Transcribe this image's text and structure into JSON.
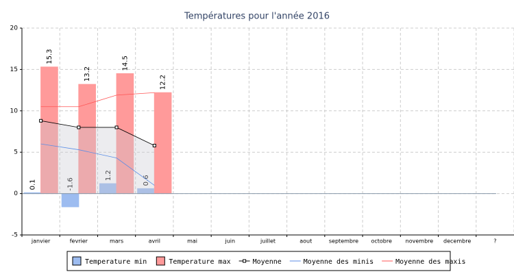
{
  "chart_data": {
    "type": "bar",
    "title": "Températures pour l'année 2016",
    "categories": [
      "janvier",
      "fevrier",
      "mars",
      "avril",
      "mai",
      "juin",
      "juillet",
      "aout",
      "septembre",
      "octobre",
      "novembre",
      "decembre",
      "?"
    ],
    "series": [
      {
        "name": "Temperature min",
        "type": "bar",
        "color": "#9dbcf0",
        "values": [
          0.1,
          -1.6,
          1.2,
          0.6,
          null,
          null,
          null,
          null,
          null,
          null,
          null,
          null,
          null
        ]
      },
      {
        "name": "Temperature max",
        "type": "bar",
        "color": "#ff9a9a",
        "values": [
          15.3,
          13.2,
          14.5,
          12.2,
          null,
          null,
          null,
          null,
          null,
          null,
          null,
          null,
          null
        ]
      },
      {
        "name": "Moyenne",
        "type": "line",
        "color": "#000000",
        "values": [
          8.8,
          8.0,
          8.0,
          5.8,
          null,
          null,
          null,
          null,
          null,
          null,
          null,
          null,
          null
        ]
      },
      {
        "name": "Moyenne des minis",
        "type": "line",
        "color": "#5b8ee6",
        "values": [
          6.0,
          5.3,
          4.3,
          1.0,
          null,
          null,
          null,
          null,
          null,
          null,
          null,
          null,
          null
        ]
      },
      {
        "name": "Moyenne des maxis",
        "type": "line",
        "color": "#ff5555",
        "values": [
          10.5,
          10.5,
          11.9,
          12.2,
          null,
          null,
          null,
          null,
          null,
          null,
          null,
          null,
          null
        ]
      }
    ],
    "ylim": [
      -5,
      20
    ],
    "yticks": [
      -5,
      0,
      5,
      10,
      15,
      20
    ],
    "grid": true,
    "legend": "bottom"
  }
}
